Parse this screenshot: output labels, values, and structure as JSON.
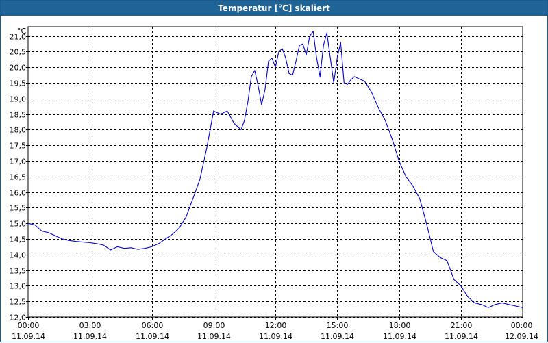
{
  "window": {
    "title": "Temperatur [°C] skaliert"
  },
  "chart_data": {
    "type": "line",
    "title": "Temperatur [°C] skaliert",
    "ylabel": "°C",
    "ylim": [
      12.0,
      21.3
    ],
    "y_ticks": [
      "12,0",
      "12,5",
      "13,0",
      "13,5",
      "14,0",
      "14,5",
      "15,0",
      "15,5",
      "16,0",
      "16,5",
      "17,0",
      "17,5",
      "18,0",
      "18,5",
      "19,0",
      "19,5",
      "20,0",
      "20,5",
      "21,0"
    ],
    "x_ticks": [
      {
        "time": "00:00",
        "date": "11.09.14"
      },
      {
        "time": "03:00",
        "date": "11.09.14"
      },
      {
        "time": "06:00",
        "date": "11.09.14"
      },
      {
        "time": "09:00",
        "date": "11.09.14"
      },
      {
        "time": "12:00",
        "date": "11.09.14"
      },
      {
        "time": "15:00",
        "date": "11.09.14"
      },
      {
        "time": "18:00",
        "date": "11.09.14"
      },
      {
        "time": "21:00",
        "date": "11.09.14"
      },
      {
        "time": "00:00",
        "date": "12.09.14"
      }
    ],
    "grid": true,
    "line_color": "#0000cc",
    "series": [
      {
        "x": [
          "00:00",
          "00:20",
          "00:40",
          "01:00",
          "01:20",
          "01:40",
          "02:00",
          "02:20",
          "02:40",
          "03:00",
          "03:20",
          "03:40",
          "04:00",
          "04:20",
          "04:40",
          "05:00",
          "05:20",
          "05:40",
          "06:00",
          "06:20",
          "06:40",
          "07:00",
          "07:20",
          "07:40",
          "08:00",
          "08:20",
          "08:40",
          "09:00",
          "09:20",
          "09:40",
          "10:00",
          "10:20",
          "10:30",
          "10:40",
          "10:50",
          "11:00",
          "11:10",
          "11:20",
          "11:30",
          "11:40",
          "11:50",
          "12:00",
          "12:10",
          "12:20",
          "12:30",
          "12:40",
          "12:50",
          "13:00",
          "13:10",
          "13:20",
          "13:30",
          "13:40",
          "13:50",
          "14:00",
          "14:10",
          "14:20",
          "14:30",
          "14:40",
          "14:50",
          "15:00",
          "15:10",
          "15:20",
          "15:30",
          "15:40",
          "15:50",
          "16:00",
          "16:20",
          "16:40",
          "17:00",
          "17:20",
          "17:40",
          "18:00",
          "18:20",
          "18:40",
          "19:00",
          "19:20",
          "19:40",
          "20:00",
          "20:20",
          "20:40",
          "21:00",
          "21:20",
          "21:40",
          "22:00",
          "22:20",
          "22:40",
          "23:00",
          "23:20",
          "23:40",
          "24:00"
        ],
        "y": [
          15.0,
          14.95,
          14.75,
          14.7,
          14.6,
          14.5,
          14.45,
          14.42,
          14.4,
          14.38,
          14.35,
          14.3,
          14.15,
          14.25,
          14.2,
          14.22,
          14.17,
          14.2,
          14.25,
          14.35,
          14.5,
          14.65,
          14.85,
          15.2,
          15.8,
          16.4,
          17.4,
          18.6,
          18.5,
          18.6,
          18.2,
          18.0,
          18.3,
          18.9,
          19.7,
          19.9,
          19.4,
          18.8,
          19.3,
          20.2,
          20.3,
          20.0,
          20.5,
          20.6,
          20.3,
          19.8,
          19.75,
          20.2,
          20.7,
          20.75,
          20.4,
          21.0,
          21.15,
          20.3,
          19.7,
          20.7,
          21.1,
          20.3,
          19.5,
          20.3,
          20.8,
          19.5,
          19.45,
          19.6,
          19.7,
          19.65,
          19.55,
          19.2,
          18.7,
          18.3,
          17.7,
          17.0,
          16.5,
          16.2,
          15.8,
          15.0,
          14.1,
          13.9,
          13.8,
          13.2,
          13.0,
          12.65,
          12.45,
          12.4,
          12.3,
          12.4,
          12.45,
          12.4,
          12.35,
          12.3
        ]
      }
    ]
  }
}
